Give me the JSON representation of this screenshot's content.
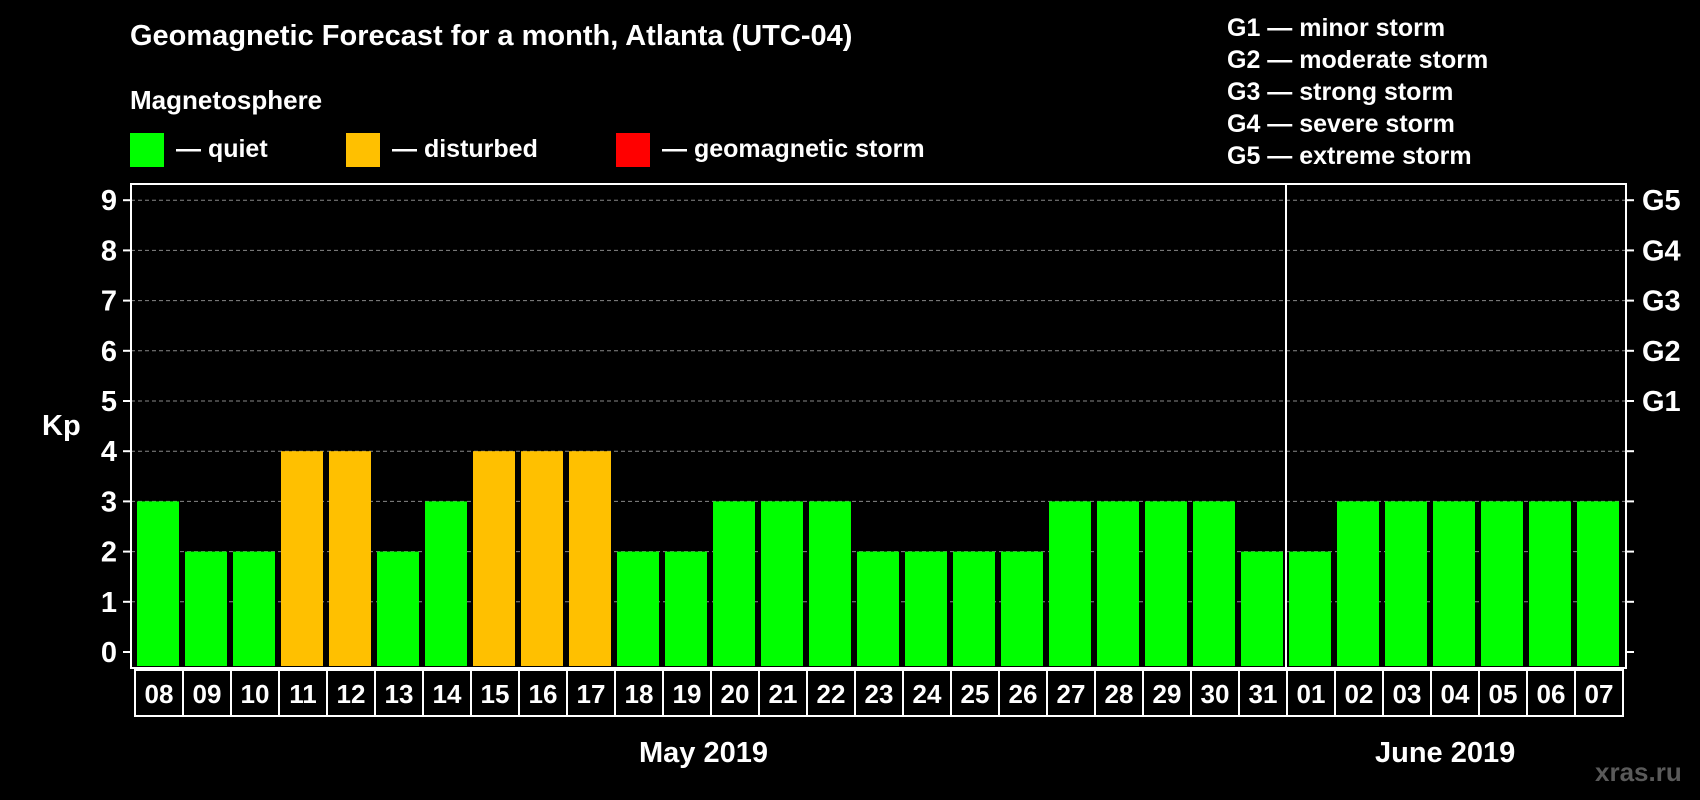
{
  "title": "Geomagnetic Forecast for a month, Atlanta (UTC-04)",
  "magnetosphere": {
    "title": "Magnetosphere",
    "legend": [
      {
        "label": "— quiet",
        "color": "#00ff00"
      },
      {
        "label": "— disturbed",
        "color": "#ffc000"
      },
      {
        "label": "— geomagnetic storm",
        "color": "#ff0000"
      }
    ]
  },
  "storm_scale": [
    "G1 — minor storm",
    "G2 — moderate storm",
    "G3 — strong storm",
    "G4 — severe storm",
    "G5 — extreme storm"
  ],
  "months": {
    "may": "May 2019",
    "june": "June 2019"
  },
  "watermark": "xras.ru",
  "chart_data": {
    "type": "bar",
    "title": "Geomagnetic Forecast for a month, Atlanta (UTC-04)",
    "ylabel": "Kp",
    "xlabel": "",
    "ylim": [
      0,
      9
    ],
    "yticks": [
      "0",
      "1",
      "2",
      "3",
      "4",
      "5",
      "6",
      "7",
      "8",
      "9"
    ],
    "right_labels": [
      {
        "kp": 5,
        "label": "G1"
      },
      {
        "kp": 6,
        "label": "G2"
      },
      {
        "kp": 7,
        "label": "G3"
      },
      {
        "kp": 8,
        "label": "G4"
      },
      {
        "kp": 9,
        "label": "G5"
      }
    ],
    "grid": true,
    "categories": [
      "08",
      "09",
      "10",
      "11",
      "12",
      "13",
      "14",
      "15",
      "16",
      "17",
      "18",
      "19",
      "20",
      "21",
      "22",
      "23",
      "24",
      "25",
      "26",
      "27",
      "28",
      "29",
      "30",
      "31",
      "01",
      "02",
      "03",
      "04",
      "05",
      "06",
      "07"
    ],
    "values": [
      3,
      2,
      2,
      4,
      4,
      2,
      3,
      4,
      4,
      4,
      2,
      2,
      3,
      3,
      3,
      2,
      2,
      2,
      2,
      3,
      3,
      3,
      3,
      2,
      2,
      3,
      3,
      3,
      3,
      3,
      3
    ],
    "colors": [
      "#00ff00",
      "#00ff00",
      "#00ff00",
      "#ffc000",
      "#ffc000",
      "#00ff00",
      "#00ff00",
      "#ffc000",
      "#ffc000",
      "#ffc000",
      "#00ff00",
      "#00ff00",
      "#00ff00",
      "#00ff00",
      "#00ff00",
      "#00ff00",
      "#00ff00",
      "#00ff00",
      "#00ff00",
      "#00ff00",
      "#00ff00",
      "#00ff00",
      "#00ff00",
      "#00ff00",
      "#00ff00",
      "#00ff00",
      "#00ff00",
      "#00ff00",
      "#00ff00",
      "#00ff00",
      "#00ff00"
    ],
    "month_split_after": "31"
  }
}
